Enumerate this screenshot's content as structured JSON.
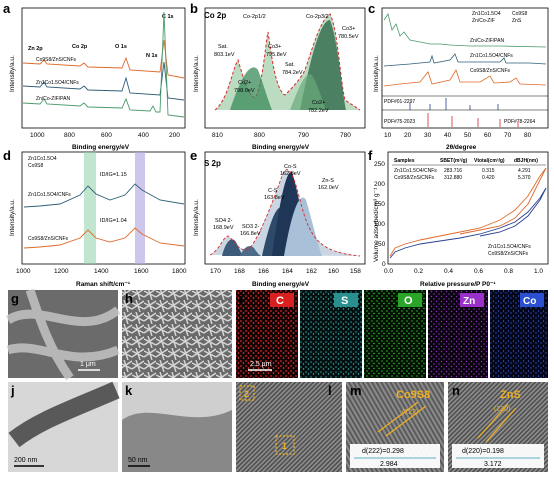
{
  "panels": {
    "a": {
      "label": "a",
      "ylabel": "Intensity/a.u.",
      "xlabel": "Binding energy/eV",
      "xticks": [
        "1000",
        "800",
        "600",
        "400",
        "200"
      ],
      "peaks": [
        "Zn 2p",
        "Co 2p",
        "O 1s",
        "N 1s",
        "C 1s"
      ],
      "series": [
        "Co9S8/ZnS/CNFs",
        "Zn1Co1.5O4/CNFs",
        "Zn/Co-ZIF/PAN"
      ]
    },
    "b": {
      "label": "b",
      "title": "Co 2p",
      "ylabel": "Intensity/a.u.",
      "xlabel": "Binding energy/eV",
      "xticks": [
        "810",
        "800",
        "790",
        "780"
      ],
      "annotations": [
        "Co-2p1/2",
        "Co-2p3/2",
        "Sat.",
        "803.1eV",
        "Co2+",
        "798.0eV",
        "Co3+",
        "795.8eV",
        "Sat.",
        "784.2eV",
        "Co2+",
        "782.2eV",
        "Co3+",
        "780.5eV"
      ]
    },
    "c": {
      "label": "c",
      "ylabel": "Intensity/a.u.",
      "xlabel": "2θ/degree",
      "xticks": [
        "10",
        "20",
        "30",
        "40",
        "50",
        "60",
        "70",
        "80"
      ],
      "legend": [
        "Zn1Co1.5O4",
        "Co9S8",
        "Zn/Co-ZIF",
        "ZnS"
      ],
      "series": [
        "Zn/Co-ZIF/PAN",
        "Zn1Co1.5O4/CNFs",
        "Co9S8/ZnS/CNFs"
      ],
      "refs": [
        "PDF#01-2297",
        "PDF#75-2023",
        "PDF#78-2264"
      ]
    },
    "d": {
      "label": "d",
      "ylabel": "Intensity/a.u.",
      "xlabel": "Raman shift/cm⁻¹",
      "xticks": [
        "1000",
        "1200",
        "1400",
        "1600",
        "1800"
      ],
      "legend": [
        "Zn1Co1.5O4",
        "Co9S8"
      ],
      "series": [
        "Zn1Co1.5O4/CNFs",
        "Co9S8/ZnS/CNFs"
      ],
      "ratios": [
        "ID/IG=1.15",
        "ID/IG=1.04"
      ]
    },
    "e": {
      "label": "e",
      "title": "S 2p",
      "ylabel": "Intensity/a.u.",
      "xlabel": "Binding energy/eV",
      "xticks": [
        "170",
        "168",
        "166",
        "164",
        "162",
        "160",
        "158"
      ],
      "annotations": [
        "SO4 2-",
        "168.9eV",
        "SO3 2-",
        "166.8eV",
        "C-S",
        "163.8eV",
        "Co-S",
        "162.8eV",
        "Zn-S",
        "162.0eV"
      ]
    },
    "f": {
      "label": "f",
      "ylabel": "Volume adsorbed/cm³ g⁻¹",
      "xlabel": "Relative pressure/P P0⁻¹",
      "xticks": [
        "0.0",
        "0.2",
        "0.4",
        "0.6",
        "0.8",
        "1.0"
      ],
      "yticks": [
        "0",
        "50",
        "100",
        "150",
        "200",
        "250"
      ],
      "table_header": [
        "Samples",
        "SBET(m²/g)",
        "Vtotal(cm³/g)",
        "dBJH(nm)"
      ],
      "table_rows": [
        [
          "Zn1Co1.5O4/CNFs",
          "283.716",
          "0.315",
          "4.291"
        ],
        [
          "Co9S8/ZnS/CNFs",
          "312.880",
          "0.420",
          "5.370"
        ]
      ],
      "legend": [
        "Zn1Co1.5O4/CNFs",
        "Co9S8/ZnS/CNFs"
      ]
    },
    "g": {
      "label": "g",
      "scale": "1 μm"
    },
    "h": {
      "label": "h"
    },
    "i": {
      "label": "i",
      "scale": "2.5 μm",
      "maps": [
        "C",
        "S",
        "O",
        "Zn",
        "Co"
      ]
    },
    "j": {
      "label": "j",
      "scale": "200 nm"
    },
    "k": {
      "label": "k",
      "scale": "50 nm"
    },
    "l": {
      "label": "l",
      "boxes": [
        "2",
        "1"
      ]
    },
    "m": {
      "label": "m",
      "phase": "Co9S8",
      "plane": "(222)",
      "dspacing": "d(222)=0.298",
      "width": "2.984"
    },
    "n": {
      "label": "n",
      "phase": "ZnS",
      "plane": "(220)",
      "dspacing": "d(220)=0.198",
      "width": "3.172"
    }
  },
  "colors": {
    "orange": "#e0692a",
    "teal": "#2f5f78",
    "green": "#4c9a6a",
    "blue": "#2a3f8f",
    "red": "#d8282b",
    "C_map": "#d82020",
    "S_map": "#2a8f8f",
    "O_map": "#2aa52a",
    "Zn_map": "#9a2fc9",
    "Co_map": "#2a4fd0"
  }
}
